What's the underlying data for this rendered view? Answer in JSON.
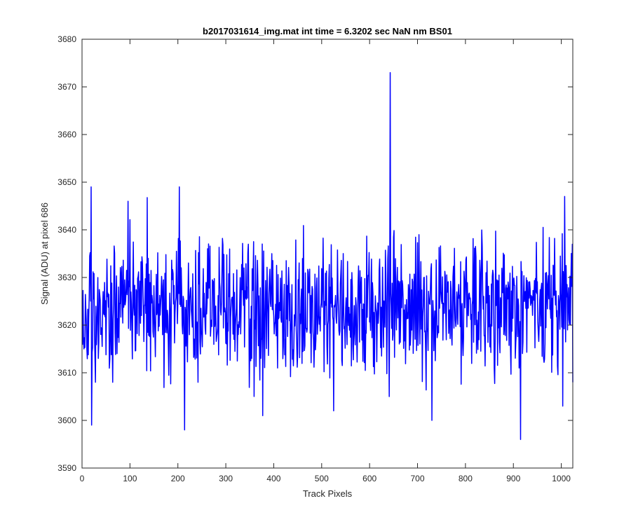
{
  "figure": {
    "background": "#ffffff"
  },
  "chart_data": {
    "type": "line",
    "title": "b2017031614_img.mat int time = 6.3202 sec  NaN nm BS01",
    "xlabel": "Track Pixels",
    "ylabel": "Signal (ADU) at pixel 686",
    "xlim": [
      0,
      1024
    ],
    "ylim": [
      3590,
      3680
    ],
    "xticks": [
      0,
      100,
      200,
      300,
      400,
      500,
      600,
      700,
      800,
      900,
      1000
    ],
    "yticks": [
      3590,
      3600,
      3610,
      3620,
      3630,
      3640,
      3650,
      3660,
      3670,
      3680
    ],
    "grid": false,
    "legend": "none",
    "line_color": "#0000ff",
    "series": [
      {
        "x_start": 1,
        "x_step": 1,
        "approx_mean": 3624,
        "approx_std": 7,
        "notable_points": [
          {
            "x": 4,
            "y": 3615
          },
          {
            "x": 19,
            "y": 3649
          },
          {
            "x": 20,
            "y": 3599
          },
          {
            "x": 28,
            "y": 3608
          },
          {
            "x": 64,
            "y": 3608
          },
          {
            "x": 96,
            "y": 3646
          },
          {
            "x": 203,
            "y": 3649
          },
          {
            "x": 214,
            "y": 3598
          },
          {
            "x": 242,
            "y": 3608
          },
          {
            "x": 377,
            "y": 3601
          },
          {
            "x": 525,
            "y": 3602
          },
          {
            "x": 641,
            "y": 3605
          },
          {
            "x": 643,
            "y": 3673
          },
          {
            "x": 730,
            "y": 3600
          },
          {
            "x": 915,
            "y": 3596
          },
          {
            "x": 1003,
            "y": 3603
          },
          {
            "x": 1007,
            "y": 3647
          },
          {
            "x": 1024,
            "y": 3608
          }
        ]
      }
    ]
  }
}
